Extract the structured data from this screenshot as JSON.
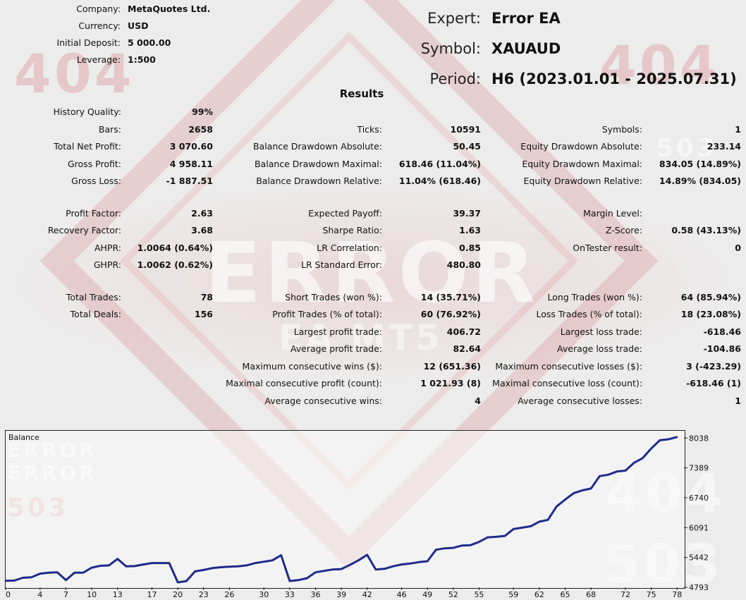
{
  "header": {
    "company": {
      "label": "Company:",
      "value": "MetaQuotes Ltd."
    },
    "currency": {
      "label": "Currency:",
      "value": "USD"
    },
    "initial_deposit": {
      "label": "Initial Deposit:",
      "value": "5 000.00"
    },
    "leverage": {
      "label": "Leverage:",
      "value": "1:500"
    },
    "expert": {
      "label": "Expert:",
      "value": "Error EA"
    },
    "symbol": {
      "label": "Symbol:",
      "value": "XAUAUD"
    },
    "period": {
      "label": "Period:",
      "value": "H6 (2023.01.01 - 2025.07.31)"
    }
  },
  "results_title": "Results",
  "col1": [
    {
      "label": "History Quality:",
      "value": "99%"
    },
    {
      "label": "Bars:",
      "value": "2658"
    },
    {
      "label": "Total Net Profit:",
      "value": "3 070.60"
    },
    {
      "label": "Gross Profit:",
      "value": "4 958.11"
    },
    {
      "label": "Gross Loss:",
      "value": "-1 887.51"
    },
    {
      "label": "Profit Factor:",
      "value": "2.63"
    },
    {
      "label": "Recovery Factor:",
      "value": "3.68"
    },
    {
      "label": "AHPR:",
      "value": "1.0064 (0.64%)"
    },
    {
      "label": "GHPR:",
      "value": "1.0062 (0.62%)"
    },
    {
      "label": "Total Trades:",
      "value": "78"
    },
    {
      "label": "Total Deals:",
      "value": "156"
    }
  ],
  "col2": [
    {
      "label": "Ticks:",
      "value": "10591"
    },
    {
      "label": "Balance Drawdown Absolute:",
      "value": "50.45"
    },
    {
      "label": "Balance Drawdown Maximal:",
      "value": "618.46 (11.04%)"
    },
    {
      "label": "Balance Drawdown Relative:",
      "value": "11.04% (618.46)"
    },
    {
      "label": "Expected Payoff:",
      "value": "39.37"
    },
    {
      "label": "Sharpe Ratio:",
      "value": "1.63"
    },
    {
      "label": "LR Correlation:",
      "value": "0.85"
    },
    {
      "label": "LR Standard Error:",
      "value": "480.80"
    },
    {
      "label": "Short Trades (won %):",
      "value": "14 (35.71%)"
    },
    {
      "label": "Profit Trades (% of total):",
      "value": "60 (76.92%)"
    },
    {
      "label": "Largest profit trade:",
      "value": "406.72"
    },
    {
      "label": "Average profit trade:",
      "value": "82.64"
    },
    {
      "label": "Maximum consecutive wins ($):",
      "value": "12 (651.36)"
    },
    {
      "label": "Maximal consecutive profit (count):",
      "value": "1 021.93 (8)"
    },
    {
      "label": "Average consecutive wins:",
      "value": "4"
    }
  ],
  "col3": [
    {
      "label": "Symbols:",
      "value": "1"
    },
    {
      "label": "Equity Drawdown Absolute:",
      "value": "233.14"
    },
    {
      "label": "Equity Drawdown Maximal:",
      "value": "834.05 (14.89%)"
    },
    {
      "label": "Equity Drawdown Relative:",
      "value": "14.89% (834.05)"
    },
    {
      "label": "Margin Level:",
      "value": ""
    },
    {
      "label": "Z-Score:",
      "value": "0.58 (43.13%)"
    },
    {
      "label": "OnTester result:",
      "value": "0"
    },
    {
      "label": "Long Trades (won %):",
      "value": "64 (85.94%)"
    },
    {
      "label": "Loss Trades (% of total):",
      "value": "18 (23.08%)"
    },
    {
      "label": "Largest loss trade:",
      "value": "-618.46"
    },
    {
      "label": "Average loss trade:",
      "value": "-104.86"
    },
    {
      "label": "Maximum consecutive losses ($):",
      "value": "3 (-423.29)"
    },
    {
      "label": "Maximal consecutive loss (count):",
      "value": "-618.46 (1)"
    },
    {
      "label": "Average consecutive losses:",
      "value": "1"
    }
  ],
  "background_text": [
    "404",
    "ERROR",
    "EA MT5",
    "503",
    "404",
    "503",
    "ERROR",
    "ERROR",
    "503",
    "404"
  ],
  "chart_data": {
    "type": "line",
    "title": "Balance",
    "line_color": "#1f2a8c",
    "x_ticks": [
      0,
      4,
      7,
      10,
      13,
      17,
      20,
      23,
      26,
      30,
      33,
      36,
      39,
      42,
      46,
      49,
      52,
      55,
      59,
      62,
      65,
      68,
      72,
      75,
      78
    ],
    "y_ticks": [
      4793,
      5442,
      6091,
      6740,
      7389,
      8038
    ],
    "xlim": [
      0,
      78.8
    ],
    "ylim": [
      4793,
      8180
    ],
    "series": [
      {
        "x": [
          0,
          1,
          2,
          3,
          4,
          5,
          6,
          7,
          8,
          9,
          10,
          11,
          12,
          13,
          14,
          15,
          16,
          17,
          18,
          19,
          20,
          21,
          22,
          23,
          24,
          25,
          26,
          27,
          28,
          29,
          30,
          31,
          32,
          33,
          34,
          35,
          36,
          37,
          38,
          39,
          40,
          41,
          42,
          43,
          44,
          45,
          46,
          47,
          48,
          49,
          50,
          51,
          52,
          53,
          54,
          55,
          56,
          57,
          58,
          59,
          60,
          61,
          62,
          63,
          64,
          65,
          66,
          67,
          68,
          69,
          70,
          71,
          72,
          73,
          74,
          75,
          76,
          77,
          78
        ],
        "y": [
          4935,
          4940,
          5000,
          5010,
          5090,
          5110,
          5120,
          4950,
          5110,
          5110,
          5220,
          5260,
          5270,
          5410,
          5250,
          5255,
          5290,
          5320,
          5320,
          5320,
          4900,
          4930,
          5140,
          5170,
          5210,
          5230,
          5240,
          5250,
          5270,
          5320,
          5350,
          5380,
          5490,
          4930,
          4950,
          4990,
          5120,
          5150,
          5180,
          5190,
          5280,
          5380,
          5500,
          5180,
          5195,
          5250,
          5290,
          5310,
          5340,
          5360,
          5610,
          5640,
          5650,
          5700,
          5710,
          5780,
          5880,
          5890,
          5910,
          6060,
          6090,
          6120,
          6220,
          6260,
          6550,
          6700,
          6840,
          6900,
          6940,
          7210,
          7240,
          7310,
          7330,
          7500,
          7600,
          7810,
          7990,
          8010,
          8060
        ]
      }
    ]
  }
}
